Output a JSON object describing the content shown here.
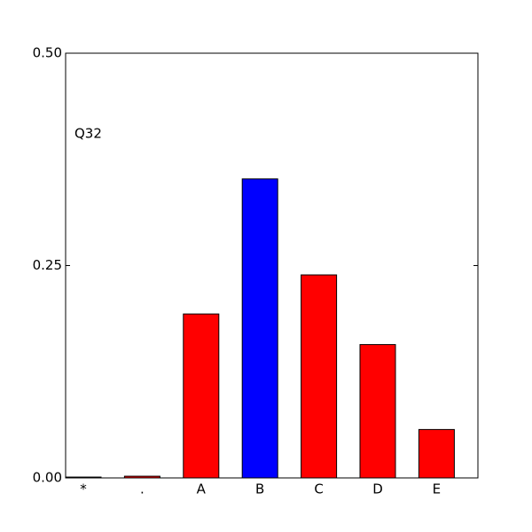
{
  "chart_data": {
    "type": "bar",
    "annotation": "Q32",
    "categories": [
      "*",
      ".",
      "A",
      "B",
      "C",
      "D",
      "E"
    ],
    "values": [
      0.001,
      0.002,
      0.193,
      0.352,
      0.239,
      0.157,
      0.057
    ],
    "colors": [
      "#ff0000",
      "#ff0000",
      "#ff0000",
      "#0000ff",
      "#ff0000",
      "#ff0000",
      "#ff0000"
    ],
    "ylim": [
      0,
      0.5
    ],
    "yticks": [
      {
        "value": 0,
        "label": "0.00"
      },
      {
        "value": 0.25,
        "label": "0.25"
      },
      {
        "value": 0.5,
        "label": "0.50"
      }
    ]
  }
}
